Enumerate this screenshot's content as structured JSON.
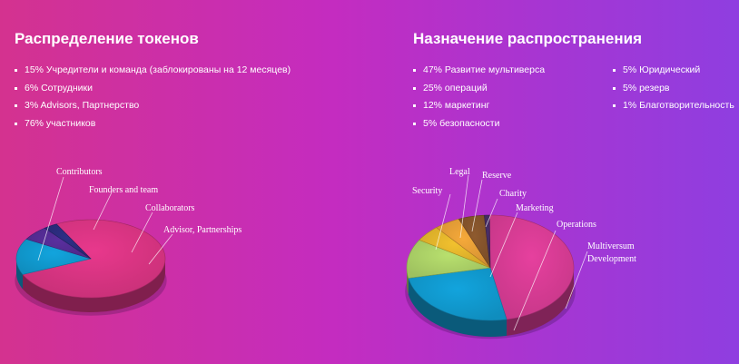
{
  "chart_data": [
    {
      "type": "pie",
      "title": "Распределение токенов",
      "legend": [
        "15% Учредители и команда (заблокированы на 12 месяцев)",
        "6% Сотрудники",
        "3% Advisors, Партнерство",
        "76% участников"
      ],
      "slices": [
        {
          "label": "Contributors",
          "value": 76,
          "color": "#e8388c"
        },
        {
          "label": "Founders and team",
          "value": 15,
          "color": "#12a4dd"
        },
        {
          "label": "Collaborators",
          "value": 6,
          "color": "#5a2f9e"
        },
        {
          "label": "Advisor, Partnerships",
          "value": 3,
          "color": "#2e2f86"
        }
      ]
    },
    {
      "type": "pie",
      "title": "Назначение распространения",
      "legend": [
        "47% Развитие мультиверса",
        "25% операций",
        "12% маркетинг",
        "5% безопасности",
        "5% Юридический",
        "5% резерв",
        "1% Благотворительность"
      ],
      "legend_columns": [
        4,
        3
      ],
      "slices": [
        {
          "label": "Multiversum Development",
          "value": 47,
          "color": "#e6409e"
        },
        {
          "label": "Operations",
          "value": 25,
          "color": "#12a4dd"
        },
        {
          "label": "Marketing",
          "value": 12,
          "color": "#b8e06e"
        },
        {
          "label": "Security",
          "value": 5,
          "color": "#f2c12e"
        },
        {
          "label": "Legal",
          "value": 5,
          "color": "#f5a93a"
        },
        {
          "label": "Reserve",
          "value": 5,
          "color": "#8e5a2e"
        },
        {
          "label": "Charity",
          "value": 1,
          "color": "#4a2f6a"
        }
      ]
    }
  ]
}
